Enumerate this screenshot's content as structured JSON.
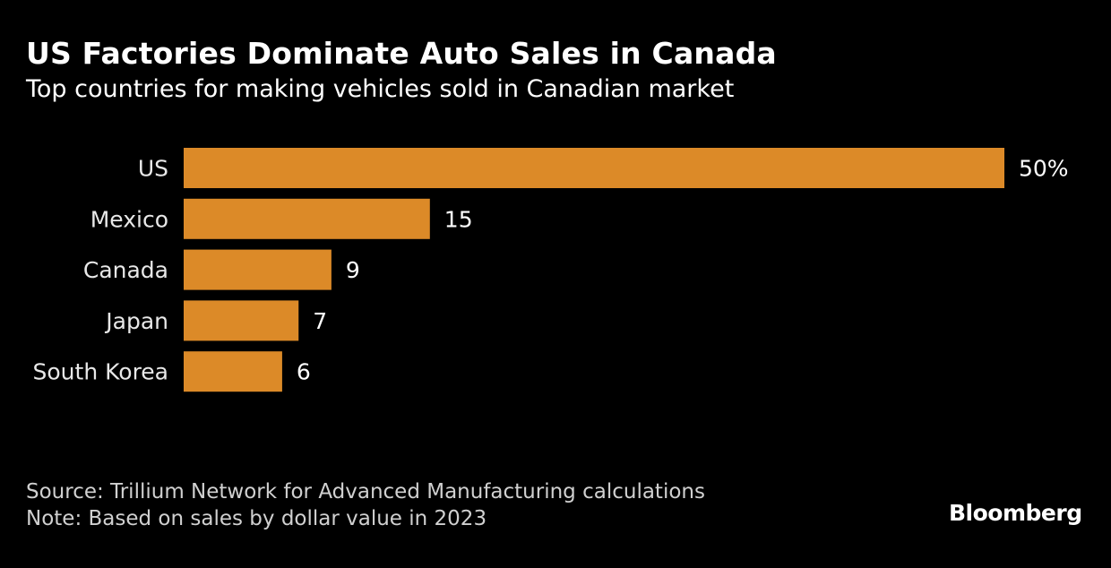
{
  "chart_data": {
    "type": "bar",
    "orientation": "horizontal",
    "title": "US Factories Dominate Auto Sales in Canada",
    "subtitle": "Top countries for making vehicles sold in Canadian market",
    "categories": [
      "US",
      "Mexico",
      "Canada",
      "Japan",
      "South Korea"
    ],
    "values": [
      50,
      15,
      9,
      7,
      6
    ],
    "value_labels": [
      "50%",
      "15",
      "9",
      "7",
      "6"
    ],
    "unit": "%",
    "xlabel": "",
    "ylabel": "",
    "xlim": [
      0,
      50
    ],
    "grid": false,
    "legend": "none",
    "bar_color": "#dc8a28"
  },
  "footer": {
    "source": "Source: Trillium Network for Advanced Manufacturing calculations",
    "note": "Note: Based on sales by dollar value in 2023"
  },
  "brand": "Bloomberg"
}
